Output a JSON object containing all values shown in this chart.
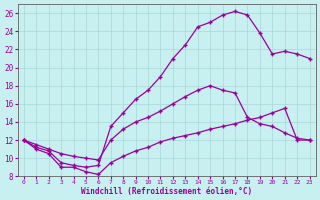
{
  "xlabel": "Windchill (Refroidissement éolien,°C)",
  "bg_color": "#c8f0f0",
  "grid_color": "#a8d8d8",
  "line_color": "#990099",
  "xlim": [
    -0.5,
    23.5
  ],
  "ylim": [
    8,
    27
  ],
  "xticks": [
    0,
    1,
    2,
    3,
    4,
    5,
    6,
    7,
    8,
    9,
    10,
    11,
    12,
    13,
    14,
    15,
    16,
    17,
    18,
    19,
    20,
    21,
    22,
    23
  ],
  "yticks": [
    8,
    10,
    12,
    14,
    16,
    18,
    20,
    22,
    24,
    26
  ],
  "curve1_x": [
    0,
    1,
    2,
    3,
    4,
    5,
    6,
    7,
    8,
    9,
    10,
    11,
    12,
    13,
    14,
    15,
    16,
    17,
    18,
    19,
    20,
    21,
    22,
    23
  ],
  "curve1_y": [
    12.0,
    11.0,
    10.5,
    9.0,
    9.0,
    8.5,
    8.2,
    9.5,
    10.2,
    10.8,
    11.2,
    11.8,
    12.2,
    12.5,
    12.8,
    13.2,
    13.5,
    13.8,
    14.2,
    14.5,
    15.0,
    15.5,
    12.0,
    12.0
  ],
  "curve2_x": [
    0,
    1,
    2,
    3,
    4,
    5,
    6,
    7,
    8,
    9,
    10,
    11,
    12,
    13,
    14,
    15,
    16,
    17,
    18,
    19,
    20,
    21,
    22,
    23
  ],
  "curve2_y": [
    12.0,
    11.2,
    10.8,
    9.5,
    9.2,
    9.0,
    9.2,
    13.5,
    15.0,
    16.5,
    17.5,
    19.0,
    21.0,
    22.5,
    24.5,
    25.0,
    25.8,
    26.2,
    25.8,
    23.8,
    21.5,
    21.8,
    21.5,
    21.0
  ],
  "curve3_x": [
    0,
    1,
    2,
    3,
    4,
    5,
    6,
    7,
    8,
    9,
    10,
    11,
    12,
    13,
    14,
    15,
    16,
    17,
    18,
    19,
    20,
    21,
    22,
    23
  ],
  "curve3_y": [
    12.0,
    11.5,
    11.0,
    10.5,
    10.2,
    10.0,
    9.8,
    12.0,
    13.2,
    14.0,
    14.5,
    15.2,
    16.0,
    16.8,
    17.5,
    18.0,
    17.5,
    17.2,
    14.5,
    13.8,
    13.5,
    12.8,
    12.2,
    12.0
  ]
}
